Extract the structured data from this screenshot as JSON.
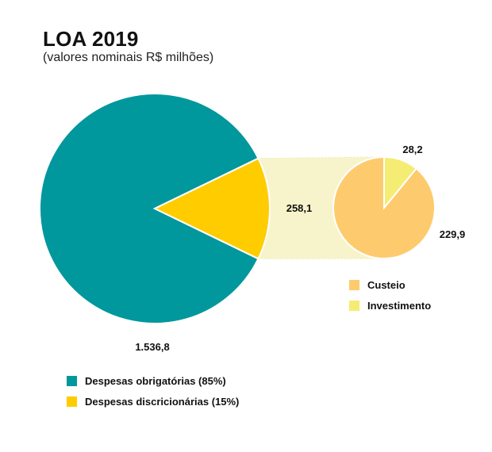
{
  "header": {
    "title": "LOA 2019",
    "subtitle": "(valores nominais R$ milhões)"
  },
  "chart_data": [
    {
      "type": "pie",
      "title": "LOA 2019",
      "subtitle": "(valores nominais R$ milhões)",
      "slices": [
        {
          "label": "Despesas obrigatórias (85%)",
          "value": 1536.8,
          "display": "1.536,8",
          "color": "#00979d"
        },
        {
          "label": "Despesas discricionárias (15%)",
          "value": 258.1,
          "display": "258,1",
          "color": "#ffcc00"
        }
      ],
      "legend_position": "bottom-left"
    },
    {
      "type": "pie",
      "parent_slice": "Despesas discricionárias (15%)",
      "slices": [
        {
          "label": "Custeio",
          "value": 229.9,
          "display": "229,9",
          "color": "#fdcb6e"
        },
        {
          "label": "Investimento",
          "value": 28.2,
          "display": "28,2",
          "color": "#f5ec73"
        }
      ],
      "legend_position": "below"
    }
  ],
  "legend_main": [
    {
      "label": "Despesas obrigatórias (85%)",
      "color": "#00979d"
    },
    {
      "label": "Despesas discricionárias (15%)",
      "color": "#ffcc00"
    }
  ],
  "legend_sub": [
    {
      "label": "Custeio",
      "color": "#fdcb6e"
    },
    {
      "label": "Investimento",
      "color": "#f5ec73"
    }
  ],
  "connector_color": "#f7f4cc"
}
